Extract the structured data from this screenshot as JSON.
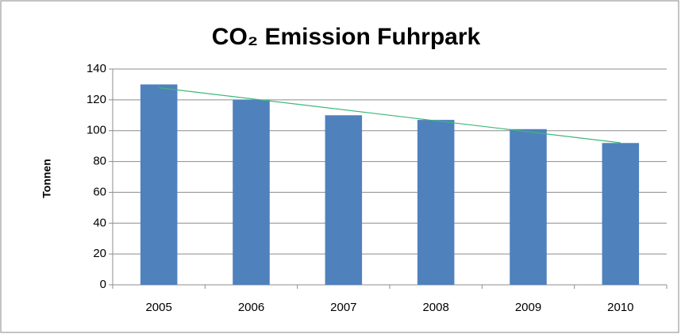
{
  "chart_data": {
    "type": "bar",
    "title": "CO₂ Emission Fuhrpark",
    "y_label": "Tonnen",
    "categories": [
      "2005",
      "2006",
      "2007",
      "2008",
      "2009",
      "2010"
    ],
    "values": [
      130,
      120,
      110,
      107,
      101,
      92
    ],
    "color": "#4f81bd",
    "ylim": [
      0,
      140
    ],
    "yticks": [
      0,
      20,
      40,
      60,
      80,
      100,
      120,
      140
    ],
    "grid": true,
    "trendline": "linear",
    "trendline_color": "#3cb878"
  }
}
